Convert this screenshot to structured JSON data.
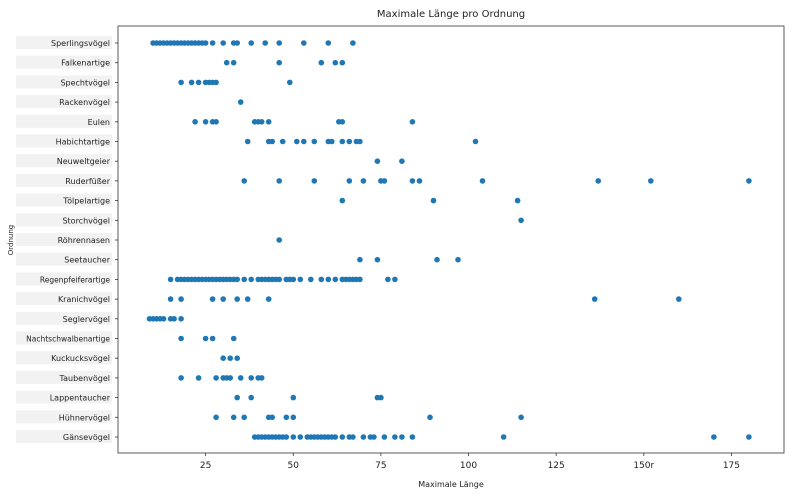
{
  "chart_data": {
    "type": "scatter",
    "title": "Maximale Länge pro Ordnung",
    "xlabel": "Maximale Länge",
    "ylabel": "Ordnung",
    "xlim": [
      0,
      190
    ],
    "x_ticks": [
      {
        "value": 25,
        "label": "25"
      },
      {
        "value": 50,
        "label": "50"
      },
      {
        "value": 75,
        "label": "75"
      },
      {
        "value": 100,
        "label": "100"
      },
      {
        "value": 125,
        "label": "125"
      },
      {
        "value": 150,
        "label": "150r"
      },
      {
        "value": 175,
        "label": "175"
      }
    ],
    "grid": false,
    "legend": "none",
    "point_color": "#1f77b4",
    "categories": [
      {
        "name": "Sperlingsvögel",
        "x": [
          10,
          11,
          12,
          13,
          14,
          15,
          16,
          17,
          18,
          19,
          20,
          21,
          22,
          23,
          24,
          25,
          27,
          30,
          33,
          34,
          38,
          42,
          46,
          53,
          60,
          67
        ]
      },
      {
        "name": "Falkenartige",
        "x": [
          31,
          33,
          46,
          58,
          62,
          64
        ]
      },
      {
        "name": "Spechtvögel",
        "x": [
          18,
          21,
          23,
          25,
          26,
          27,
          28,
          49
        ]
      },
      {
        "name": "Rackenvögel",
        "x": [
          35
        ]
      },
      {
        "name": "Eulen",
        "x": [
          22,
          25,
          27,
          28,
          39,
          40,
          41,
          43,
          63,
          64,
          84
        ]
      },
      {
        "name": "Habichtartige",
        "x": [
          37,
          43,
          44,
          47,
          51,
          53,
          56,
          60,
          61,
          64,
          66,
          68,
          69,
          102
        ]
      },
      {
        "name": "Neuweltgeier",
        "x": [
          74,
          81
        ]
      },
      {
        "name": "Ruderfüßer",
        "x": [
          36,
          46,
          56,
          66,
          70,
          75,
          76,
          84,
          86,
          104,
          137,
          152,
          180
        ]
      },
      {
        "name": "Tölpelartige",
        "x": [
          64,
          90,
          114
        ]
      },
      {
        "name": "Storchvögel",
        "x": [
          115
        ]
      },
      {
        "name": "Röhrennasen",
        "x": [
          46
        ]
      },
      {
        "name": "Seetaucher",
        "x": [
          69,
          74,
          91,
          97
        ]
      },
      {
        "name": "Regenpfeiferartige",
        "x": [
          15,
          17,
          18,
          19,
          20,
          21,
          22,
          23,
          24,
          25,
          26,
          27,
          28,
          29,
          30,
          31,
          32,
          33,
          34,
          36,
          38,
          40,
          41,
          42,
          43,
          44,
          45,
          46,
          48,
          49,
          50,
          52,
          55,
          58,
          60,
          62,
          64,
          65,
          66,
          67,
          68,
          69,
          77,
          79
        ]
      },
      {
        "name": "Kranichvögel",
        "x": [
          15,
          18,
          27,
          30,
          34,
          37,
          43,
          136,
          160
        ]
      },
      {
        "name": "Seglervögel",
        "x": [
          9,
          10,
          11,
          12,
          13,
          15,
          16,
          18
        ]
      },
      {
        "name": "Nachtschwalbenartige",
        "x": [
          18,
          25,
          27,
          33
        ]
      },
      {
        "name": "Kuckucksvögel",
        "x": [
          30,
          32,
          34
        ]
      },
      {
        "name": "Taubenvögel",
        "x": [
          18,
          23,
          28,
          30,
          31,
          32,
          35,
          38,
          40,
          41
        ]
      },
      {
        "name": "Lappentaucher",
        "x": [
          34,
          38,
          50,
          74,
          75
        ]
      },
      {
        "name": "Hühnervögel",
        "x": [
          28,
          33,
          36,
          43,
          44,
          48,
          50,
          89,
          115
        ]
      },
      {
        "name": "Gänsevögel",
        "x": [
          39,
          40,
          41,
          42,
          43,
          44,
          45,
          46,
          47,
          48,
          50,
          52,
          54,
          55,
          56,
          57,
          58,
          59,
          60,
          61,
          62,
          64,
          66,
          67,
          70,
          72,
          73,
          76,
          79,
          81,
          84,
          110,
          170,
          180
        ]
      }
    ]
  }
}
